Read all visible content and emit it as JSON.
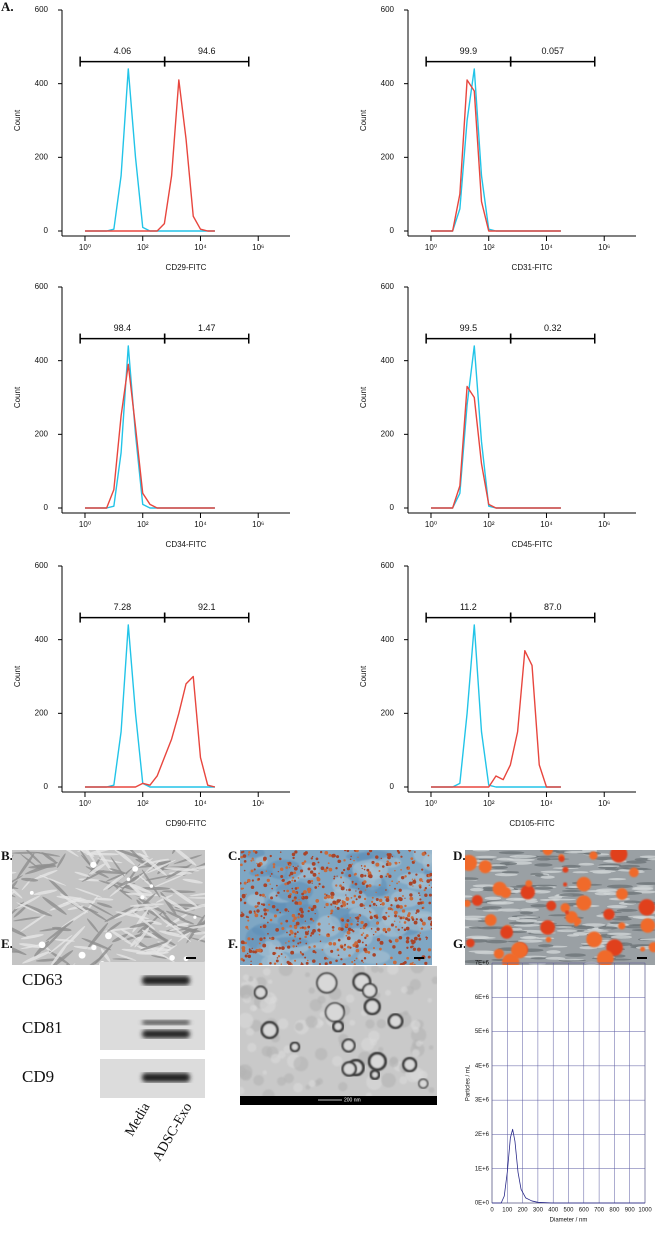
{
  "panel_labels": [
    "A.",
    "B.",
    "C.",
    "D.",
    "E.",
    "F.",
    "G."
  ],
  "chart_data": [
    {
      "type": "line",
      "x_label": "CD29-FITC",
      "y_label": "Count",
      "x_log": true,
      "xlim": [
        0.16,
        12600000
      ],
      "xticks": [
        {
          "value": 1,
          "label": "10⁰"
        },
        {
          "value": 100,
          "label": "10²"
        },
        {
          "value": 10000,
          "label": "10⁴"
        },
        {
          "value": 1000000,
          "label": "10⁶"
        }
      ],
      "ylim": [
        0,
        600
      ],
      "yticks": [
        0,
        200,
        400,
        600
      ],
      "x": [
        1,
        1.78,
        3.16,
        5.62,
        10,
        17.8,
        31.6,
        56.2,
        100,
        178,
        316,
        562,
        1000,
        1780,
        3160,
        5620,
        10000,
        17800,
        31600
      ],
      "series": [
        {
          "color": "#22c4e8",
          "values": [
            0,
            0,
            0,
            0,
            5,
            150,
            440,
            200,
            10,
            0,
            0,
            0,
            0,
            0,
            0,
            0,
            0,
            0,
            0
          ]
        },
        {
          "color": "#e8463e",
          "values": [
            0,
            0,
            0,
            0,
            0,
            0,
            0,
            0,
            0,
            0,
            0,
            20,
            150,
            410,
            250,
            40,
            5,
            0,
            0
          ]
        }
      ],
      "gate_level": 460,
      "gates": [
        {
          "label": "4.06",
          "range": [
            0.68,
            575
          ]
        },
        {
          "label": "94.6",
          "range": [
            575,
            470000
          ]
        }
      ]
    },
    {
      "type": "line",
      "x_label": "CD31-FITC",
      "y_label": "Count",
      "x_log": true,
      "xlim": [
        0.16,
        12600000
      ],
      "xticks": [
        {
          "value": 1,
          "label": "10⁰"
        },
        {
          "value": 100,
          "label": "10²"
        },
        {
          "value": 10000,
          "label": "10⁴"
        },
        {
          "value": 1000000,
          "label": "10⁶"
        }
      ],
      "ylim": [
        0,
        600
      ],
      "yticks": [
        0,
        200,
        400,
        600
      ],
      "x": [
        1,
        1.78,
        3.16,
        5.62,
        10,
        17.8,
        31.6,
        56.2,
        100,
        178,
        316,
        562,
        1000,
        1780,
        3160,
        5620,
        10000,
        17800,
        31600
      ],
      "series": [
        {
          "color": "#22c4e8",
          "values": [
            0,
            0,
            0,
            0,
            60,
            300,
            440,
            150,
            5,
            0,
            0,
            0,
            0,
            0,
            0,
            0,
            0,
            0,
            0
          ]
        },
        {
          "color": "#e8463e",
          "values": [
            0,
            0,
            0,
            0,
            100,
            410,
            380,
            80,
            0,
            0,
            0,
            0,
            0,
            0,
            0,
            0,
            0,
            0,
            0
          ]
        }
      ],
      "gate_level": 460,
      "gates": [
        {
          "label": "99.9",
          "range": [
            0.68,
            575
          ]
        },
        {
          "label": "0.057",
          "range": [
            575,
            470000
          ]
        }
      ]
    },
    {
      "type": "line",
      "x_label": "CD34-FITC",
      "y_label": "Count",
      "x_log": true,
      "xlim": [
        0.16,
        12600000
      ],
      "xticks": [
        {
          "value": 1,
          "label": "10⁰"
        },
        {
          "value": 100,
          "label": "10²"
        },
        {
          "value": 10000,
          "label": "10⁴"
        },
        {
          "value": 1000000,
          "label": "10⁶"
        }
      ],
      "ylim": [
        0,
        600
      ],
      "yticks": [
        0,
        200,
        400,
        600
      ],
      "x": [
        1,
        1.78,
        3.16,
        5.62,
        10,
        17.8,
        31.6,
        56.2,
        100,
        178,
        316,
        562,
        1000,
        1780,
        3160,
        5620,
        10000,
        17800,
        31600
      ],
      "series": [
        {
          "color": "#22c4e8",
          "values": [
            0,
            0,
            0,
            0,
            5,
            150,
            440,
            200,
            10,
            0,
            0,
            0,
            0,
            0,
            0,
            0,
            0,
            0,
            0
          ]
        },
        {
          "color": "#e8463e",
          "values": [
            0,
            0,
            0,
            0,
            50,
            250,
            390,
            220,
            40,
            10,
            0,
            0,
            0,
            0,
            0,
            0,
            0,
            0,
            0
          ]
        }
      ],
      "gate_level": 460,
      "gates": [
        {
          "label": "98.4",
          "range": [
            0.68,
            575
          ]
        },
        {
          "label": "1.47",
          "range": [
            575,
            470000
          ]
        }
      ]
    },
    {
      "type": "line",
      "x_label": "CD45-FITC",
      "y_label": "Count",
      "x_log": true,
      "xlim": [
        0.16,
        12600000
      ],
      "xticks": [
        {
          "value": 1,
          "label": "10⁰"
        },
        {
          "value": 100,
          "label": "10²"
        },
        {
          "value": 10000,
          "label": "10⁴"
        },
        {
          "value": 1000000,
          "label": "10⁶"
        }
      ],
      "ylim": [
        0,
        600
      ],
      "yticks": [
        0,
        200,
        400,
        600
      ],
      "x": [
        1,
        1.78,
        3.16,
        5.62,
        10,
        17.8,
        31.6,
        56.2,
        100,
        178,
        316,
        562,
        1000,
        1780,
        3160,
        5620,
        10000,
        17800,
        31600
      ],
      "series": [
        {
          "color": "#22c4e8",
          "values": [
            0,
            0,
            0,
            0,
            40,
            280,
            440,
            180,
            5,
            0,
            0,
            0,
            0,
            0,
            0,
            0,
            0,
            0,
            0
          ]
        },
        {
          "color": "#e8463e",
          "values": [
            0,
            0,
            0,
            0,
            60,
            330,
            300,
            120,
            10,
            0,
            0,
            0,
            0,
            0,
            0,
            0,
            0,
            0,
            0
          ]
        }
      ],
      "gate_level": 460,
      "gates": [
        {
          "label": "99.5",
          "range": [
            0.68,
            575
          ]
        },
        {
          "label": "0.32",
          "range": [
            575,
            470000
          ]
        }
      ]
    },
    {
      "type": "line",
      "x_label": "CD90-FITC",
      "y_label": "Count",
      "x_log": true,
      "xlim": [
        0.16,
        12600000
      ],
      "xticks": [
        {
          "value": 1,
          "label": "10⁰"
        },
        {
          "value": 100,
          "label": "10²"
        },
        {
          "value": 10000,
          "label": "10⁴"
        },
        {
          "value": 1000000,
          "label": "10⁶"
        }
      ],
      "ylim": [
        0,
        600
      ],
      "yticks": [
        0,
        200,
        400,
        600
      ],
      "x": [
        1,
        1.78,
        3.16,
        5.62,
        10,
        17.8,
        31.6,
        56.2,
        100,
        178,
        316,
        562,
        1000,
        1780,
        3160,
        5620,
        10000,
        17800,
        31600
      ],
      "series": [
        {
          "color": "#22c4e8",
          "values": [
            0,
            0,
            0,
            0,
            5,
            150,
            440,
            200,
            10,
            0,
            0,
            0,
            0,
            0,
            0,
            0,
            0,
            0,
            0
          ]
        },
        {
          "color": "#e8463e",
          "values": [
            0,
            0,
            0,
            0,
            0,
            0,
            0,
            0,
            10,
            5,
            30,
            80,
            130,
            200,
            280,
            300,
            80,
            5,
            0
          ]
        }
      ],
      "gate_level": 460,
      "gates": [
        {
          "label": "7.28",
          "range": [
            0.68,
            575
          ]
        },
        {
          "label": "92.1",
          "range": [
            575,
            470000
          ]
        }
      ]
    },
    {
      "type": "line",
      "x_label": "CD105-FITC",
      "y_label": "Count",
      "x_log": true,
      "xlim": [
        0.16,
        12600000
      ],
      "xticks": [
        {
          "value": 1,
          "label": "10⁰"
        },
        {
          "value": 100,
          "label": "10²"
        },
        {
          "value": 10000,
          "label": "10⁴"
        },
        {
          "value": 1000000,
          "label": "10⁶"
        }
      ],
      "ylim": [
        0,
        600
      ],
      "yticks": [
        0,
        200,
        400,
        600
      ],
      "x": [
        1,
        1.78,
        3.16,
        5.62,
        10,
        17.8,
        31.6,
        56.2,
        100,
        178,
        316,
        562,
        1000,
        1780,
        3160,
        5620,
        10000,
        17800,
        31600
      ],
      "series": [
        {
          "color": "#22c4e8",
          "values": [
            0,
            0,
            0,
            0,
            10,
            200,
            440,
            150,
            5,
            0,
            0,
            0,
            0,
            0,
            0,
            0,
            0,
            0,
            0
          ]
        },
        {
          "color": "#e8463e",
          "values": [
            0,
            0,
            0,
            0,
            0,
            0,
            0,
            0,
            0,
            30,
            20,
            60,
            150,
            370,
            330,
            60,
            0,
            0,
            0
          ]
        }
      ],
      "gate_level": 460,
      "gates": [
        {
          "label": "11.2",
          "range": [
            0.68,
            575
          ]
        },
        {
          "label": "87.0",
          "range": [
            575,
            470000
          ]
        }
      ]
    },
    {
      "type": "line",
      "x_label": "Diameter / nm",
      "y_label": "Particles / mL",
      "grid": true,
      "xlim": [
        0,
        1000
      ],
      "xticks": [
        0,
        100,
        200,
        300,
        400,
        500,
        600,
        700,
        800,
        900,
        1000
      ],
      "ylim": [
        0,
        7000000
      ],
      "yticks": [
        {
          "value": 0,
          "label": "0E+0"
        },
        {
          "value": 1000000,
          "label": "1E+6"
        },
        {
          "value": 2000000,
          "label": "2E+6"
        },
        {
          "value": 3000000,
          "label": "3E+6"
        },
        {
          "value": 4000000,
          "label": "4E+6"
        },
        {
          "value": 5000000,
          "label": "5E+6"
        },
        {
          "value": 6000000,
          "label": "6E+6"
        },
        {
          "value": 7000000,
          "label": "7E+6"
        }
      ],
      "x": [
        0,
        60,
        80,
        100,
        120,
        135,
        150,
        170,
        190,
        220,
        260,
        300,
        400,
        1000
      ],
      "series": [
        {
          "color": "#2a2a8a",
          "values": [
            0,
            0,
            200000,
            900000,
            1900000,
            2150000,
            1800000,
            900000,
            400000,
            150000,
            60000,
            20000,
            0,
            0
          ]
        }
      ]
    }
  ],
  "blot": {
    "rows": [
      "CD63",
      "CD81",
      "CD9"
    ],
    "lanes": [
      "Media",
      "ADSC-Exo"
    ]
  },
  "tem": {
    "scale_label": "200 nm"
  }
}
